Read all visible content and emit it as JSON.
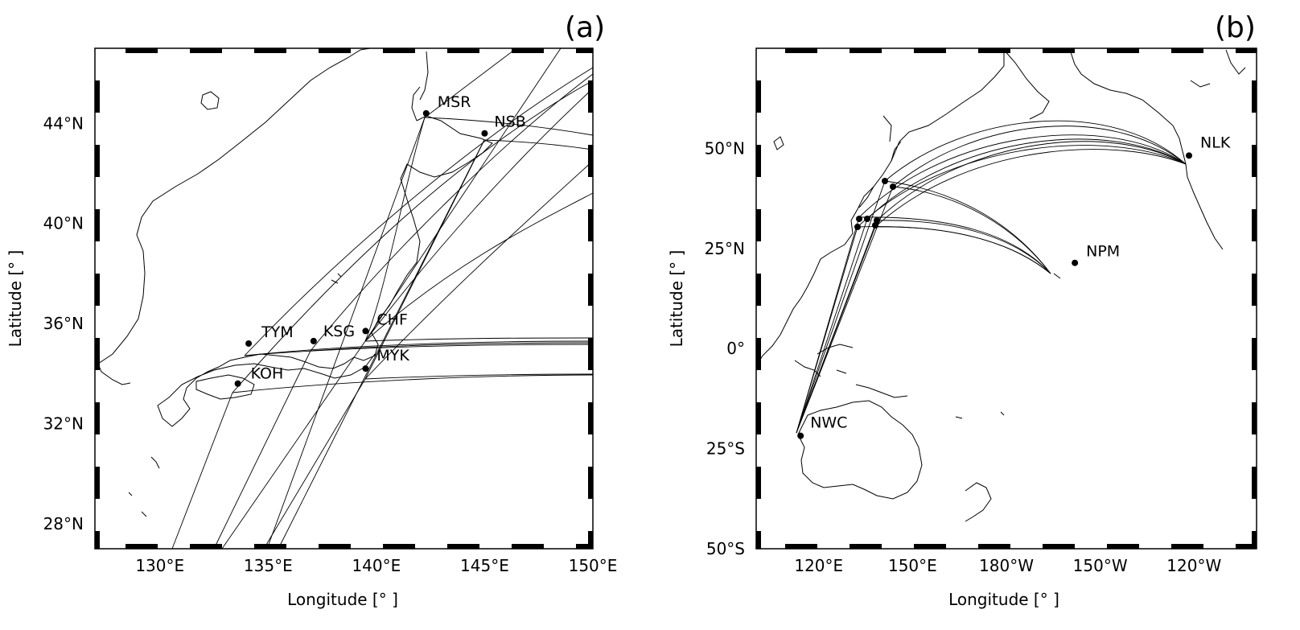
{
  "figure": {
    "panels": [
      {
        "id": "a",
        "panel_label": "(a)",
        "xlabel": "Longitude [°  ]",
        "ylabel": "Latitude [°  ]",
        "lon_range": [
          127,
          150
        ],
        "lat_range": [
          27,
          47
        ],
        "x_ticks": [
          {
            "lon": 130,
            "label": "130°E"
          },
          {
            "lon": 135,
            "label": "135°E"
          },
          {
            "lon": 140,
            "label": "140°E"
          },
          {
            "lon": 145,
            "label": "145°E"
          },
          {
            "lon": 150,
            "label": "150°E"
          }
        ],
        "y_ticks": [
          {
            "lat": 28,
            "label": "28°N"
          },
          {
            "lat": 32,
            "label": "32°N"
          },
          {
            "lat": 36,
            "label": "36°N"
          },
          {
            "lat": 40,
            "label": "40°N"
          },
          {
            "lat": 44,
            "label": "44°N"
          }
        ],
        "stations": [
          {
            "code": "MSR",
            "lon": 142.3,
            "lat": 44.4
          },
          {
            "code": "NSB",
            "lon": 145.0,
            "lat": 43.6
          },
          {
            "code": "TYM",
            "lon": 134.1,
            "lat": 35.2
          },
          {
            "code": "KSG",
            "lon": 137.1,
            "lat": 35.3
          },
          {
            "code": "CHF",
            "lon": 139.5,
            "lat": 35.7
          },
          {
            "code": "KOH",
            "lon": 133.6,
            "lat": 33.6
          },
          {
            "code": "MYK",
            "lon": 139.5,
            "lat": 34.2
          }
        ]
      },
      {
        "id": "b",
        "panel_label": "(b)",
        "xlabel": "Longitude [°  ]",
        "ylabel": "Latitude [°  ]",
        "lon_range": [
          100,
          260
        ],
        "lat_range": [
          -50,
          75
        ],
        "x_ticks": [
          {
            "lon": 120,
            "label": "120°E"
          },
          {
            "lon": 150,
            "label": "150°E"
          },
          {
            "lon": 180,
            "label": "180°W"
          },
          {
            "lon": 210,
            "label": "150°W"
          },
          {
            "lon": 240,
            "label": "120°W"
          }
        ],
        "y_ticks": [
          {
            "lat": -50,
            "label": "50°S"
          },
          {
            "lat": -25,
            "label": "25°S"
          },
          {
            "lat": 0,
            "label": "0°"
          },
          {
            "lat": 25,
            "label": "25°N"
          },
          {
            "lat": 50,
            "label": "50°N"
          }
        ],
        "transmitters": [
          {
            "code": "NLK",
            "lon": 238.4,
            "lat": 48.2
          },
          {
            "code": "NPM",
            "lon": 201.9,
            "lat": 21.4
          },
          {
            "code": "NWC",
            "lon": 114.2,
            "lat": -21.8
          }
        ]
      }
    ]
  }
}
